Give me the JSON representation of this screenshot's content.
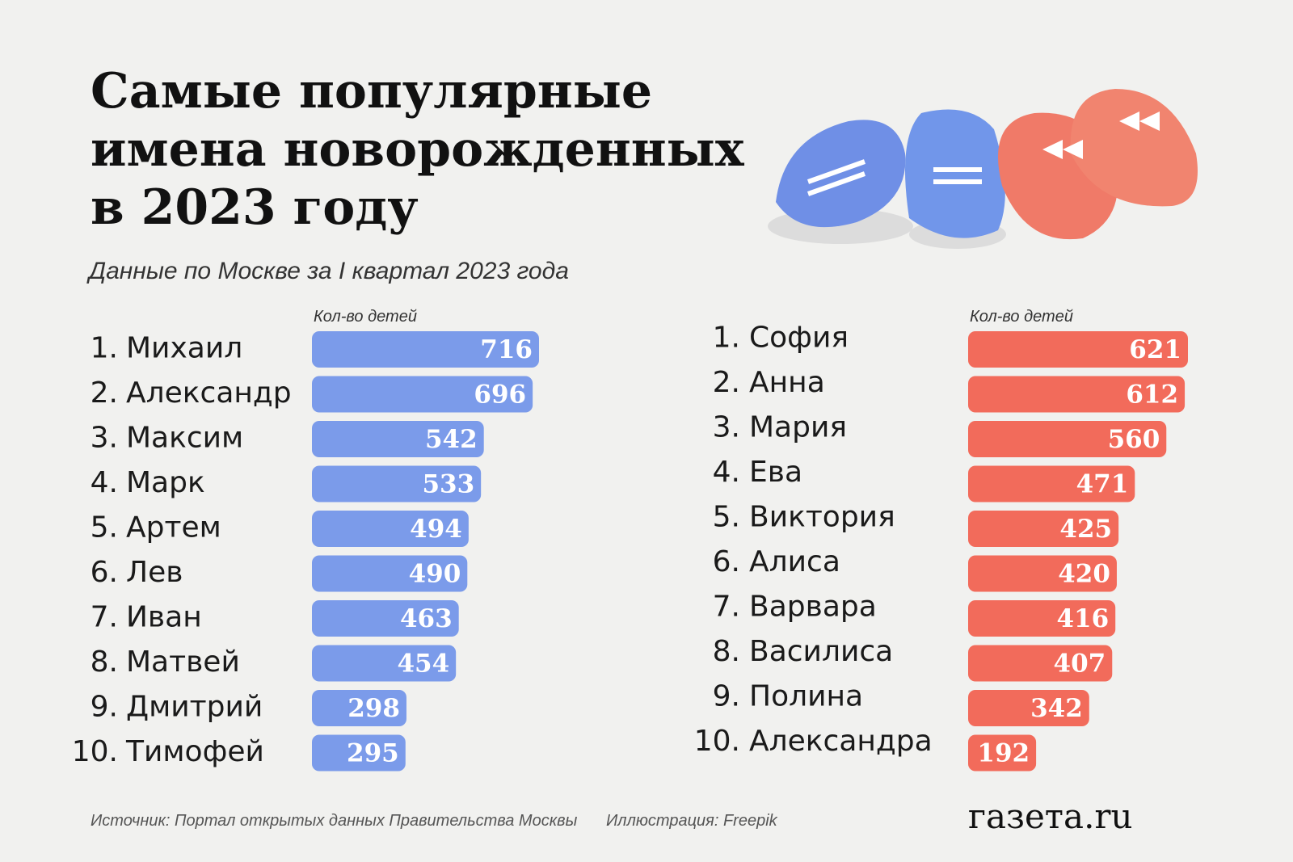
{
  "header": {
    "title_lines": [
      "Самые популярные",
      "имена новорожденных",
      "в 2023 году"
    ],
    "subtitle": "Данные по Москве за I квартал 2023 года"
  },
  "chart_data": [
    {
      "type": "bar",
      "orientation": "horizontal",
      "value_axis_label": "Кол-во детей",
      "color": "#7b9bea",
      "rank_labels": [
        "1.",
        "2.",
        "3.",
        "4.",
        "5.",
        "6.",
        "7.",
        "8.",
        "9.",
        "10."
      ],
      "categories": [
        "Михаил",
        "Александр",
        "Максим",
        "Марк",
        "Артем",
        "Лев",
        "Иван",
        "Матвей",
        "Дмитрий",
        "Тимофей"
      ],
      "values": [
        716,
        696,
        542,
        533,
        494,
        490,
        463,
        454,
        298,
        295
      ]
    },
    {
      "type": "bar",
      "orientation": "horizontal",
      "value_axis_label": "Кол-во детей",
      "color": "#f26b5b",
      "rank_labels": [
        "1.",
        "2.",
        "3.",
        "4.",
        "5.",
        "6.",
        "7.",
        "8.",
        "9.",
        "10."
      ],
      "categories": [
        "София",
        "Анна",
        "Мария",
        "Ева",
        "Виктория",
        "Алиса",
        "Варвара",
        "Василиса",
        "Полина",
        "Александра"
      ],
      "values": [
        621,
        612,
        560,
        471,
        425,
        420,
        416,
        407,
        342,
        192
      ]
    }
  ],
  "footer": {
    "source": "Источник: Портал открытых данных Правительства Москвы",
    "illustration": "Иллюстрация:  Freepik",
    "logo": "газета.ru"
  }
}
